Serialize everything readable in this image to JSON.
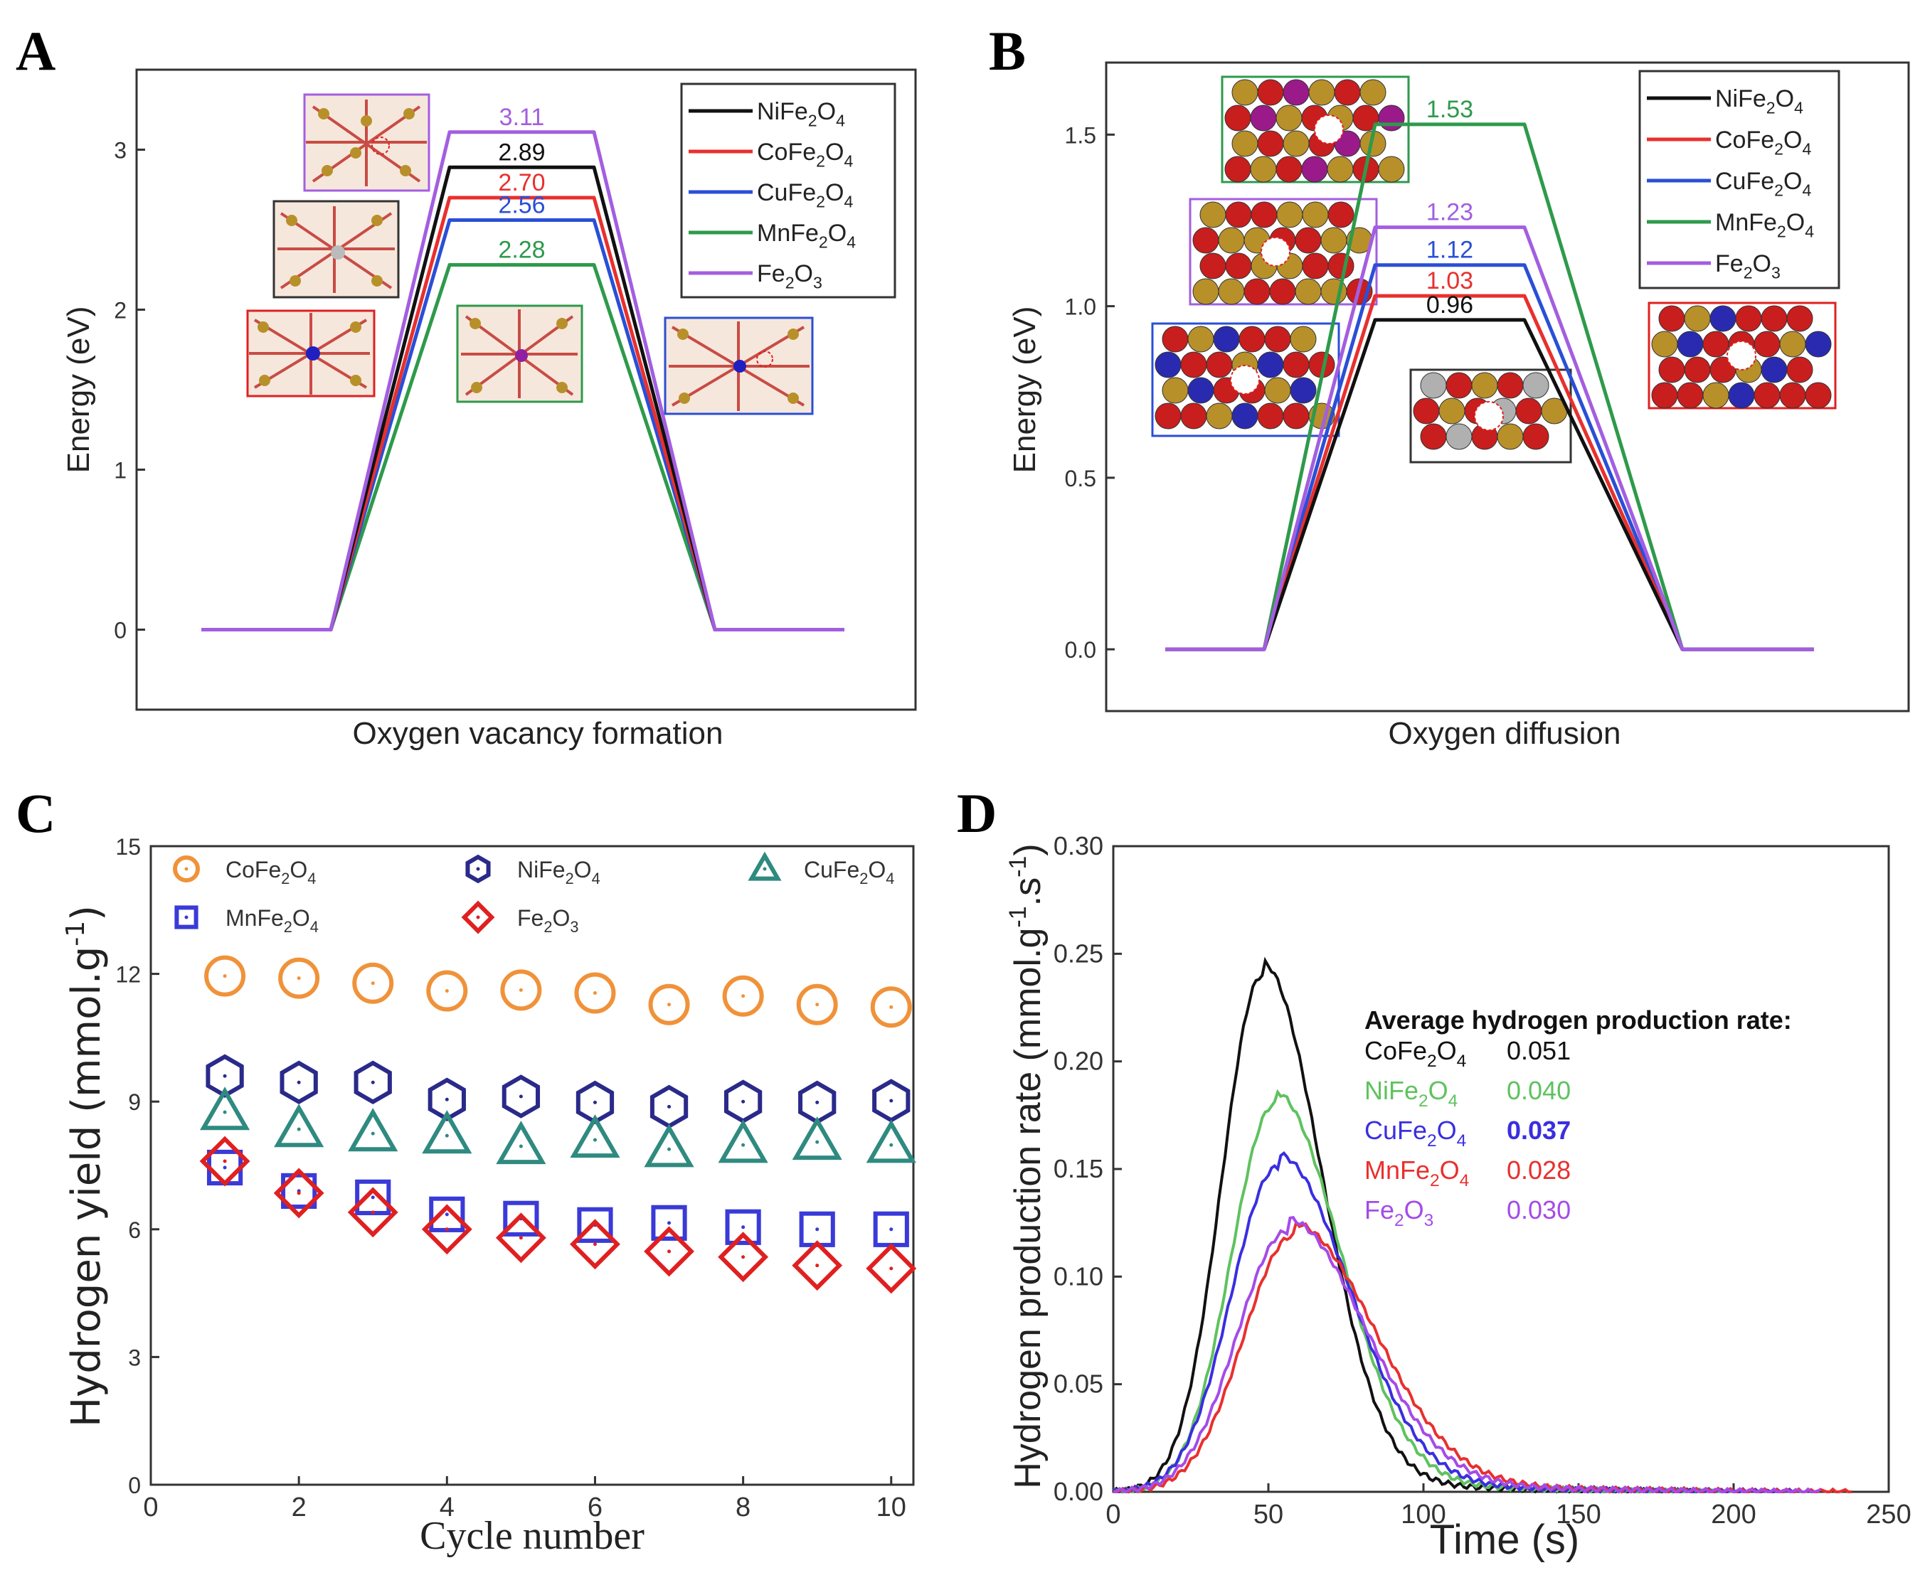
{
  "colors": {
    "NiFe2O4": "#111111",
    "CoFe2O4": "#e8302e",
    "CuFe2O4": "#2a4fd6",
    "MnFe2O4": "#2e9a4b",
    "Fe2O3": "#a35ee0",
    "c_Co": "#f0923a",
    "c_Ni": "#2a2a8a",
    "c_Cu": "#2f8a80",
    "c_Mn": "#3a3ad8",
    "c_Fe": "#e02020",
    "d_Co": "#111111",
    "d_Ni": "#5fc25f",
    "d_Cu": "#3a2ee0",
    "d_Mn": "#e8302e",
    "d_Fe": "#a54be8"
  },
  "chart_data": [
    {
      "panel": "A",
      "type": "line",
      "title": "",
      "xlabel": "Oxygen vacancy formation",
      "ylabel": "Energy (eV)",
      "ylim": [
        -0.5,
        3.5
      ],
      "yticks": [
        "0",
        "1",
        "2",
        "3"
      ],
      "series": [
        {
          "name": "NiFe2O4",
          "base": "NiFe",
          "sub1": "2",
          "mid": "O",
          "sub2": "4",
          "barrier": 2.89,
          "label": "2.89"
        },
        {
          "name": "CoFe2O4",
          "base": "CoFe",
          "sub1": "2",
          "mid": "O",
          "sub2": "4",
          "barrier": 2.7,
          "label": "2.70"
        },
        {
          "name": "CuFe2O4",
          "base": "CuFe",
          "sub1": "2",
          "mid": "O",
          "sub2": "4",
          "barrier": 2.56,
          "label": "2.56"
        },
        {
          "name": "MnFe2O4",
          "base": "MnFe",
          "sub1": "2",
          "mid": "O",
          "sub2": "4",
          "barrier": 2.28,
          "label": "2.28"
        },
        {
          "name": "Fe2O3",
          "base": "Fe",
          "sub1": "2",
          "mid": "O",
          "sub2": "3",
          "barrier": 3.11,
          "label": "3.11"
        }
      ]
    },
    {
      "panel": "B",
      "type": "line",
      "title": "",
      "xlabel": "Oxygen diffusion",
      "ylabel": "Energy (eV)",
      "ylim": [
        -0.18,
        1.71
      ],
      "yticks": [
        "0.0",
        "0.5",
        "1.0",
        "1.5"
      ],
      "series": [
        {
          "name": "NiFe2O4",
          "base": "NiFe",
          "sub1": "2",
          "mid": "O",
          "sub2": "4",
          "barrier": 0.96,
          "label": "0.96"
        },
        {
          "name": "CoFe2O4",
          "base": "CoFe",
          "sub1": "2",
          "mid": "O",
          "sub2": "4",
          "barrier": 1.03,
          "label": "1.03"
        },
        {
          "name": "CuFe2O4",
          "base": "CuFe",
          "sub1": "2",
          "mid": "O",
          "sub2": "4",
          "barrier": 1.12,
          "label": "1.12"
        },
        {
          "name": "MnFe2O4",
          "base": "MnFe",
          "sub1": "2",
          "mid": "O",
          "sub2": "4",
          "barrier": 1.53,
          "label": "1.53"
        },
        {
          "name": "Fe2O3",
          "base": "Fe",
          "sub1": "2",
          "mid": "O",
          "sub2": "3",
          "barrier": 1.23,
          "label": "1.23"
        }
      ]
    },
    {
      "panel": "C",
      "type": "scatter",
      "title": "",
      "xlabel": "Cycle number",
      "ylabel": "Hydrogen yield (mmol.g",
      "ylabel_sup": "-1",
      "ylabel_end": ")",
      "xlim": [
        0,
        10.3
      ],
      "ylim": [
        0,
        15
      ],
      "xticks": [
        "0",
        "2",
        "4",
        "6",
        "8",
        "10"
      ],
      "yticks": [
        "0",
        "3",
        "6",
        "9",
        "12",
        "15"
      ],
      "x": [
        1,
        2,
        3,
        4,
        5,
        6,
        7,
        8,
        9,
        10
      ],
      "series": [
        {
          "name": "CoFe2O4",
          "base": "CoFe",
          "sub1": "2",
          "mid": "O",
          "sub2": "4",
          "marker": "circle",
          "values": [
            11.95,
            11.9,
            11.78,
            11.6,
            11.62,
            11.55,
            11.28,
            11.48,
            11.28,
            11.22
          ]
        },
        {
          "name": "NiFe2O4",
          "base": "NiFe",
          "sub1": "2",
          "mid": "O",
          "sub2": "4",
          "marker": "hexagon",
          "values": [
            9.6,
            9.45,
            9.45,
            9.05,
            9.12,
            8.98,
            8.88,
            9.0,
            8.98,
            9.02
          ]
        },
        {
          "name": "CuFe2O4",
          "base": "CuFe",
          "sub1": "2",
          "mid": "O",
          "sub2": "4",
          "marker": "triangle",
          "values": [
            8.75,
            8.35,
            8.25,
            8.2,
            7.95,
            8.1,
            7.88,
            7.98,
            8.05,
            7.98
          ]
        },
        {
          "name": "MnFe2O4",
          "base": "MnFe",
          "sub1": "2",
          "mid": "O",
          "sub2": "4",
          "marker": "square",
          "values": [
            7.45,
            6.9,
            6.75,
            6.35,
            6.25,
            6.1,
            6.15,
            6.05,
            6.0,
            6.0
          ]
        },
        {
          "name": "Fe2O3",
          "base": "Fe",
          "sub1": "2",
          "mid": "O",
          "sub2": "3",
          "marker": "diamond",
          "values": [
            7.6,
            6.85,
            6.4,
            6.0,
            5.8,
            5.65,
            5.48,
            5.35,
            5.15,
            5.08
          ]
        }
      ]
    },
    {
      "panel": "D",
      "type": "line",
      "title": "",
      "xlabel": "Time (s)",
      "ylabel": "Hydrogen production rate (mmol.g",
      "ylabel_sup1": "-1",
      "ylabel_mid": ".s",
      "ylabel_sup2": "-1",
      "ylabel_end": ")",
      "xlim": [
        0,
        250
      ],
      "ylim": [
        0,
        0.3
      ],
      "xticks": [
        "0",
        "50",
        "100",
        "150",
        "200",
        "250"
      ],
      "yticks": [
        "0.00",
        "0.05",
        "0.10",
        "0.15",
        "0.20",
        "0.25",
        "0.30"
      ],
      "annotation_title": "Average hydrogen production rate:",
      "series": [
        {
          "name": "CoFe2O4",
          "base": "CoFe",
          "sub1": "2",
          "mid": "O",
          "sub2": "4",
          "avg": "0.051",
          "peak_x": 48,
          "peak_y": 0.24,
          "sigma_l": 13,
          "sigma_r": 19,
          "end_x": 190
        },
        {
          "name": "NiFe2O4",
          "base": "NiFe",
          "sub1": "2",
          "mid": "O",
          "sub2": "4",
          "avg": "0.040",
          "peak_x": 52,
          "peak_y": 0.18,
          "sigma_l": 14,
          "sigma_r": 21,
          "end_x": 200
        },
        {
          "name": "CuFe2O4",
          "base": "CuFe",
          "sub1": "2",
          "mid": "O",
          "sub2": "4",
          "avg": "0.037",
          "peak_x": 53,
          "peak_y": 0.151,
          "sigma_l": 15,
          "sigma_r": 23,
          "end_x": 220
        },
        {
          "name": "MnFe2O4",
          "base": "MnFe",
          "sub1": "2",
          "mid": "O",
          "sub2": "4",
          "avg": "0.028",
          "peak_x": 58,
          "peak_y": 0.119,
          "sigma_l": 16,
          "sigma_r": 26,
          "end_x": 238
        },
        {
          "name": "Fe2O3",
          "base": "Fe",
          "sub1": "2",
          "mid": "O",
          "sub2": "3",
          "avg": "0.030",
          "peak_x": 56,
          "peak_y": 0.121,
          "sigma_l": 16,
          "sigma_r": 25,
          "end_x": 228
        }
      ]
    }
  ],
  "panels": {
    "a": "A",
    "b": "B",
    "c": "C",
    "d": "D"
  }
}
